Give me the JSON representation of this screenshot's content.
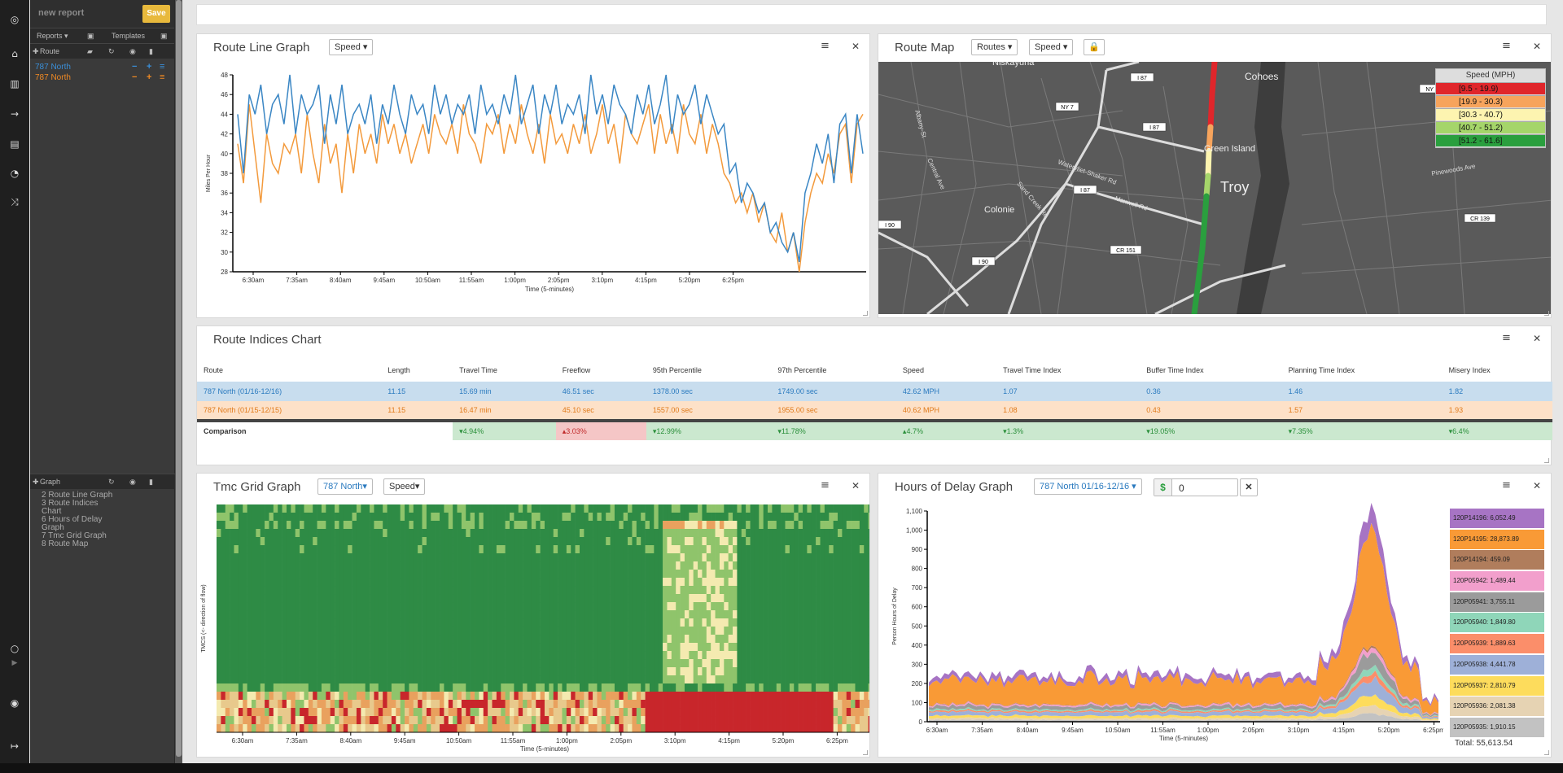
{
  "sidebar": {
    "report_name": "new report",
    "save_label": "Save",
    "reports_label": "Reports",
    "templates_label": "Templates",
    "route_label": "Route",
    "routes": [
      {
        "name": "787 North",
        "color": "#3a8fd8"
      },
      {
        "name": "787 North",
        "color": "#f08a24"
      }
    ],
    "graph_label": "Graph",
    "graphs": [
      "2 Route Line Graph",
      "3 Route Indices Chart",
      "6 Hours of Delay Graph",
      "7 Tmc Grid Graph",
      "8 Route Map"
    ]
  },
  "line_graph": {
    "title": "Route Line Graph",
    "metric": "Speed",
    "chart_data": {
      "type": "line",
      "xlabel": "Time (5-minutes)",
      "ylabel": "Miles Per Hour",
      "ylim": [
        28,
        48
      ],
      "yticks": [
        "28",
        "30",
        "32",
        "34",
        "36",
        "38",
        "40",
        "42",
        "44",
        "46",
        "48"
      ],
      "xticks": [
        "6:30am",
        "7:35am",
        "8:40am",
        "9:45am",
        "10:50am",
        "11:55am",
        "1:00pm",
        "2:05pm",
        "3:10pm",
        "4:15pm",
        "5:20pm",
        "6:25pm"
      ],
      "series": [
        {
          "color": "#3a86c4",
          "values": [
            44,
            38,
            46,
            44,
            47,
            42,
            45,
            46,
            43,
            48,
            42,
            46,
            44,
            45,
            47,
            41,
            46,
            43,
            47,
            42,
            44,
            45,
            43,
            46,
            41,
            45,
            43,
            47,
            44,
            42,
            46,
            44,
            45,
            42,
            47,
            44,
            46,
            43,
            45,
            44,
            46,
            42,
            47,
            44,
            45,
            43,
            46,
            44,
            48,
            43,
            45,
            47,
            42,
            46,
            44,
            47,
            43,
            45,
            44,
            46,
            42,
            48,
            44,
            46,
            43,
            47,
            45,
            44,
            42,
            46,
            44,
            47,
            43,
            45,
            48,
            42,
            46,
            44,
            45,
            47,
            43,
            46,
            44,
            42,
            43,
            38,
            39,
            35,
            37,
            36,
            34,
            35,
            32,
            33,
            31,
            30,
            32,
            29,
            36,
            38,
            41,
            39,
            42,
            37,
            43,
            44,
            38,
            44,
            40
          ]
        },
        {
          "color": "#f39a3c",
          "values": [
            41,
            37,
            45,
            40,
            35,
            42,
            39,
            38,
            41,
            40,
            42,
            38,
            44,
            40,
            37,
            43,
            39,
            41,
            36,
            42,
            38,
            43,
            40,
            42,
            39,
            44,
            41,
            43,
            40,
            42,
            39,
            41,
            43,
            40,
            44,
            42,
            41,
            43,
            40,
            45,
            42,
            41,
            39,
            43,
            42,
            44,
            40,
            43,
            41,
            45,
            42,
            40,
            43,
            39,
            44,
            41,
            42,
            40,
            43,
            41,
            44,
            40,
            42,
            45,
            41,
            43,
            39,
            44,
            42,
            41,
            43,
            45,
            40,
            44,
            41,
            43,
            40,
            45,
            42,
            41,
            44,
            40,
            43,
            41,
            38,
            37,
            35,
            36,
            34,
            36,
            33,
            35,
            32,
            31,
            34,
            30,
            32,
            28,
            33,
            36,
            38,
            37,
            40,
            38,
            42,
            43,
            37,
            43,
            44
          ]
        }
      ]
    }
  },
  "route_map": {
    "title": "Route Map",
    "routes_btn": "Routes",
    "metric": "Speed",
    "legend_title": "Speed (MPH)",
    "legend": [
      {
        "label": "[9.5  -  19.9)",
        "color": "#e0262b"
      },
      {
        "label": "[19.9  -  30.3)",
        "color": "#f7a45c"
      },
      {
        "label": "[30.3  -  40.7)",
        "color": "#fdf4b0"
      },
      {
        "label": "[40.7  -  51.2)",
        "color": "#a5d56a"
      },
      {
        "label": "[51.2  -  61.6]",
        "color": "#2a9f3e"
      }
    ],
    "places": [
      "Niskayuna",
      "Cohoes",
      "Green Island",
      "Troy",
      "Colonie"
    ],
    "roads": [
      "I 87",
      "NY 7",
      "I 87",
      "I 87",
      "NY 142",
      "I 90",
      "I 90",
      "CR 151",
      "CR 139",
      "Watervliet-Shaker Rd",
      "Maxwell Rd",
      "Sand Creek Rd",
      "Pinewoods Ave",
      "Central Ave",
      "Albany-St"
    ]
  },
  "indices": {
    "title": "Route Indices Chart",
    "columns": [
      "Route",
      "Length",
      "Travel Time",
      "Freeflow",
      "95th Percentile",
      "97th Percentile",
      "Speed",
      "Travel Time Index",
      "Buffer Time Index",
      "Planning Time Index",
      "Misery Index"
    ],
    "rows": [
      {
        "cells": [
          "787 North (01/16-12/16)",
          "11.15",
          "15.69 min",
          "46.51 sec",
          "1378.00 sec",
          "1749.00 sec",
          "42.62 MPH",
          "1.07",
          "0.36",
          "1.46",
          "1.82"
        ]
      },
      {
        "cells": [
          "787 North (01/15-12/15)",
          "11.15",
          "16.47 min",
          "45.10 sec",
          "1557.00 sec",
          "1955.00 sec",
          "40.62 MPH",
          "1.08",
          "0.43",
          "1.57",
          "1.93"
        ]
      }
    ],
    "comparison_label": "Comparison",
    "comparison": [
      "",
      "",
      "▾4.94%",
      "▴3.03%",
      "▾12.99%",
      "▾11.78%",
      "▴4.7%",
      "▾1.3%",
      "▾19.05%",
      "▾7.35%",
      "▾6.4%"
    ]
  },
  "tmc": {
    "title": "Tmc Grid Graph",
    "route_btn": "787 North",
    "metric": "Speed",
    "ylabel": "TMCS (<- direction of flow)",
    "xlabel": "Time (5-minutes)",
    "xticks": [
      "6:30am",
      "7:35am",
      "8:40am",
      "9:45am",
      "10:50am",
      "11:55am",
      "1:00pm",
      "2:05pm",
      "3:10pm",
      "4:15pm",
      "5:20pm",
      "6:25pm"
    ]
  },
  "delay": {
    "title": "Hours of Delay Graph",
    "route_btn": "787 North 01/16-12/16",
    "dollar": "$",
    "value": "0",
    "chart_data": {
      "type": "area",
      "ylabel": "Person Hours of Delay",
      "xlabel": "Time (5-minutes)",
      "ylim": [
        0,
        1100
      ],
      "yticks": [
        "0",
        "100",
        "200",
        "300",
        "400",
        "500",
        "600",
        "700",
        "800",
        "900",
        "1,000",
        "1,100"
      ],
      "xticks": [
        "6:30am",
        "7:35am",
        "8:40am",
        "9:45am",
        "10:50am",
        "11:55am",
        "1:00pm",
        "2:05pm",
        "3:10pm",
        "4:15pm",
        "5:20pm",
        "6:25pm"
      ]
    },
    "legend": [
      {
        "label": "120P14196: 6,052.49",
        "color": "#a774c4"
      },
      {
        "label": "120P14195: 28,873.89",
        "color": "#f99a36"
      },
      {
        "label": "120P14194: 459.09",
        "color": "#b07d5c"
      },
      {
        "label": "120P05942: 1,489.44",
        "color": "#f29fcc"
      },
      {
        "label": "120P05941: 3,755.11",
        "color": "#9b9b9b"
      },
      {
        "label": "120P05940: 1,849.80",
        "color": "#8fd6b9"
      },
      {
        "label": "120P05939: 1,889.63",
        "color": "#fb8e6a"
      },
      {
        "label": "120P05938: 4,441.78",
        "color": "#9eb0d8"
      },
      {
        "label": "120P05937: 2,810.79",
        "color": "#fddc5c"
      },
      {
        "label": "120P05936: 2,081.38",
        "color": "#e6d3b3"
      },
      {
        "label": "120P05935: 1,910.15",
        "color": "#c2c2c2"
      }
    ],
    "total": "Total: 55,613.54"
  }
}
